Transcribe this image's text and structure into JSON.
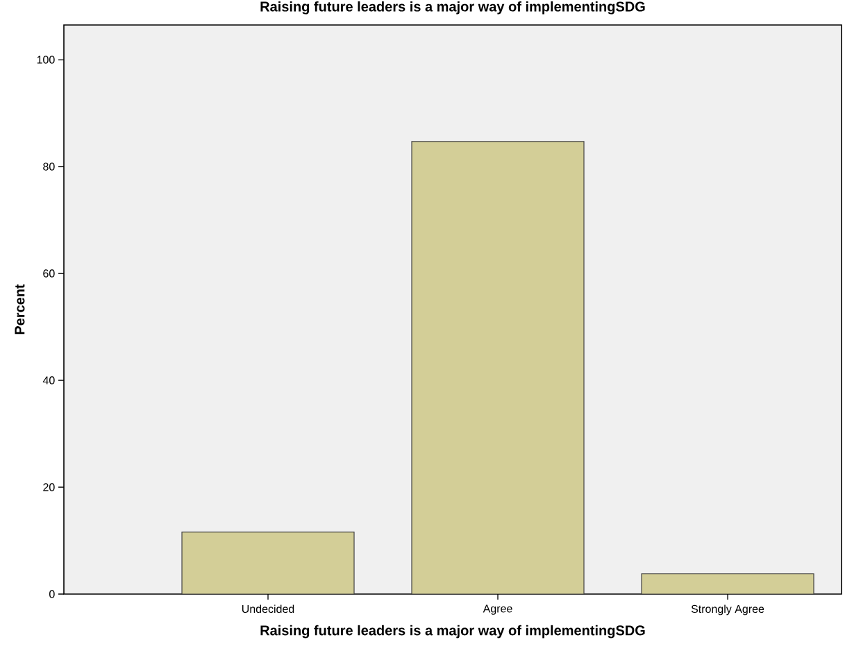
{
  "chart_data": {
    "type": "bar",
    "title": "Raising future leaders is a major way of implementingSDG",
    "xlabel": "Raising future leaders is a major way of implementingSDG",
    "ylabel": "Percent",
    "categories": [
      "Undecided",
      "Agree",
      "Strongly Agree"
    ],
    "values": [
      11.6,
      84.7,
      3.8
    ],
    "color": "#d3ce97",
    "ylim": [
      0,
      106.5
    ],
    "yticks": [
      0,
      20,
      40,
      60,
      80,
      100
    ]
  }
}
